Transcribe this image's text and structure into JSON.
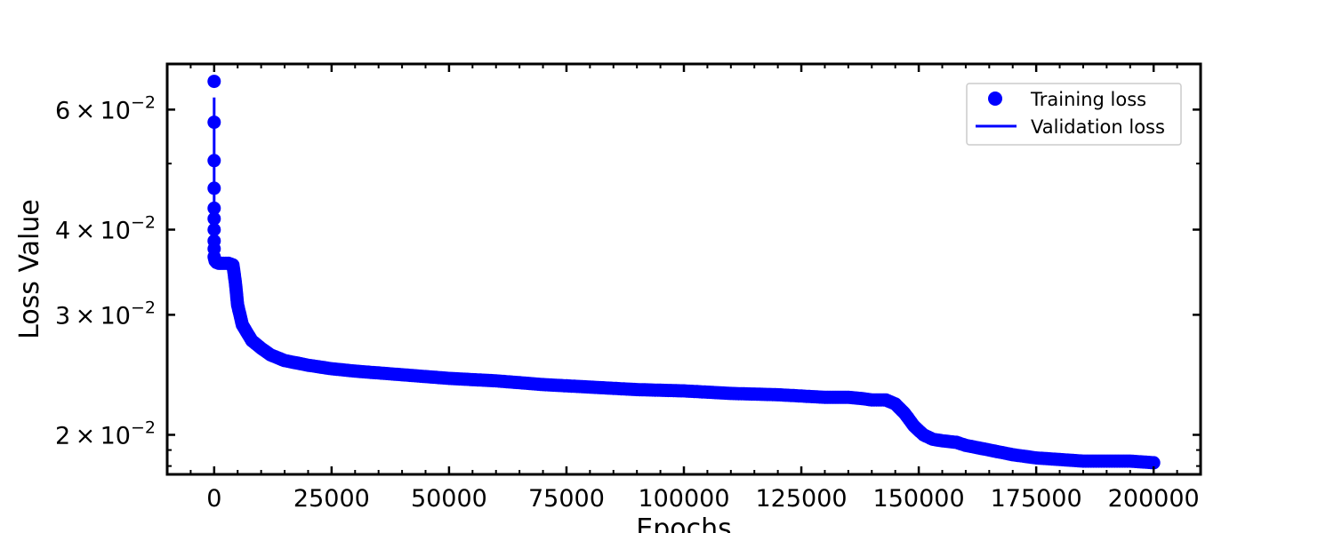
{
  "chart_data": {
    "type": "scatter",
    "xlabel": "Epochs",
    "ylabel": "Loss Value",
    "xlim": [
      -10000,
      210000
    ],
    "ylim": [
      0.0175,
      0.07
    ],
    "yscale": "log",
    "x_ticks": [
      0,
      25000,
      50000,
      75000,
      100000,
      125000,
      150000,
      175000,
      200000
    ],
    "x_tick_labels": [
      "0",
      "25000",
      "50000",
      "75000",
      "100000",
      "125000",
      "150000",
      "175000",
      "200000"
    ],
    "y_ticks": [
      0.02,
      0.03,
      0.04,
      0.06
    ],
    "y_tick_labels": [
      {
        "mantissa": "2",
        "exponent": "−2"
      },
      {
        "mantissa": "3",
        "exponent": "−2"
      },
      {
        "mantissa": "4",
        "exponent": "−2"
      },
      {
        "mantissa": "6",
        "exponent": "−2"
      }
    ],
    "times_symbol": "×",
    "base": "10",
    "legend": {
      "position": "top-right",
      "entries": [
        {
          "label": "Training loss",
          "marker": "circle"
        },
        {
          "label": "Validation loss",
          "marker": "line"
        }
      ]
    },
    "color": "#0000ff",
    "grid": false,
    "series": [
      {
        "name": "Training loss",
        "style": "markers",
        "x": [
          0,
          0,
          0,
          0,
          0,
          0,
          0,
          0,
          0,
          0,
          200,
          500,
          1000,
          2000,
          3000,
          3500,
          4000,
          4500,
          5000,
          6000,
          8000,
          10000,
          12000,
          15000,
          20000,
          25000,
          30000,
          40000,
          50000,
          60000,
          70000,
          80000,
          90000,
          100000,
          110000,
          120000,
          130000,
          135000,
          138000,
          140000,
          143000,
          145000,
          147000,
          149000,
          151000,
          153000,
          155000,
          158000,
          160000,
          165000,
          170000,
          175000,
          180000,
          185000,
          190000,
          195000,
          200000
        ],
        "y": [
          0.066,
          0.0575,
          0.0505,
          0.046,
          0.043,
          0.0415,
          0.04,
          0.0385,
          0.0375,
          0.0365,
          0.036,
          0.0358,
          0.0357,
          0.0357,
          0.0357,
          0.0356,
          0.0355,
          0.0335,
          0.031,
          0.029,
          0.0275,
          0.0268,
          0.0262,
          0.0257,
          0.0253,
          0.025,
          0.0248,
          0.0245,
          0.0242,
          0.024,
          0.0237,
          0.0235,
          0.0233,
          0.0232,
          0.023,
          0.0229,
          0.0227,
          0.0227,
          0.0226,
          0.0225,
          0.0225,
          0.0222,
          0.0215,
          0.0206,
          0.02,
          0.0197,
          0.0196,
          0.0195,
          0.0193,
          0.019,
          0.0187,
          0.0185,
          0.0184,
          0.0183,
          0.0183,
          0.0183,
          0.0182
        ]
      },
      {
        "name": "Validation loss",
        "style": "line",
        "x": [
          0,
          0,
          0,
          200,
          1000,
          3000,
          4000,
          4500,
          5000,
          6000,
          8000,
          10000,
          15000,
          20000,
          30000,
          50000,
          75000,
          100000,
          125000,
          140000,
          143000,
          145000,
          147000,
          149000,
          151000,
          155000,
          160000,
          170000,
          180000,
          190000,
          200000
        ],
        "y": [
          0.0625,
          0.05,
          0.037,
          0.036,
          0.0357,
          0.0357,
          0.0355,
          0.0335,
          0.031,
          0.029,
          0.0275,
          0.0268,
          0.0257,
          0.0253,
          0.0248,
          0.0242,
          0.0236,
          0.0232,
          0.0228,
          0.0225,
          0.0225,
          0.0222,
          0.0215,
          0.0206,
          0.02,
          0.0196,
          0.0193,
          0.0187,
          0.0184,
          0.0183,
          0.0182
        ]
      }
    ]
  }
}
